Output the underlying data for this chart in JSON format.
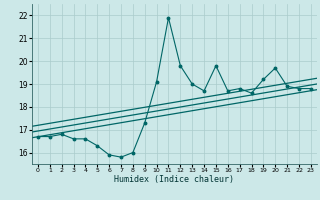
{
  "xlabel": "Humidex (Indice chaleur)",
  "ylabel": "",
  "bg_color": "#cce8e8",
  "grid_color": "#aacccc",
  "line_color": "#006666",
  "xlim": [
    -0.5,
    23.5
  ],
  "ylim": [
    15.5,
    22.5
  ],
  "yticks": [
    16,
    17,
    18,
    19,
    20,
    21,
    22
  ],
  "xticks": [
    0,
    1,
    2,
    3,
    4,
    5,
    6,
    7,
    8,
    9,
    10,
    11,
    12,
    13,
    14,
    15,
    16,
    17,
    18,
    19,
    20,
    21,
    22,
    23
  ],
  "data_x": [
    0,
    1,
    2,
    3,
    4,
    5,
    6,
    7,
    8,
    9,
    10,
    11,
    12,
    13,
    14,
    15,
    16,
    17,
    18,
    19,
    20,
    21,
    22,
    23
  ],
  "data_y": [
    16.7,
    16.7,
    16.8,
    16.6,
    16.6,
    16.3,
    15.9,
    15.8,
    16.0,
    17.3,
    19.1,
    21.9,
    19.8,
    19.0,
    18.7,
    19.8,
    18.7,
    18.8,
    18.6,
    19.2,
    19.7,
    18.9,
    18.8,
    18.8
  ],
  "reg_lines": [
    {
      "start_y": 16.65,
      "end_y": 18.75
    },
    {
      "start_y": 16.9,
      "end_y": 19.0
    },
    {
      "start_y": 17.15,
      "end_y": 19.25
    }
  ]
}
